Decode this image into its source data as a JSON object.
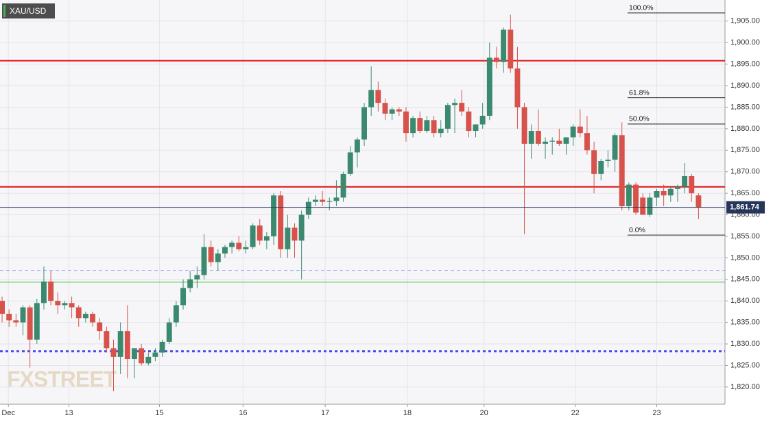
{
  "chart_data": {
    "type": "candlestick",
    "title": "XAU/USD",
    "watermark": "FXSTREET",
    "up_color": "#3b8a70",
    "down_color": "#d6524a",
    "ohlc": [
      [
        1840,
        1841,
        1835,
        1837
      ],
      [
        1837,
        1838,
        1834,
        1835.5
      ],
      [
        1835.5,
        1837,
        1834,
        1835
      ],
      [
        1835,
        1839,
        1832,
        1838.5
      ],
      [
        1838.5,
        1839,
        1824.5,
        1831
      ],
      [
        1831,
        1840.5,
        1830,
        1839.5
      ],
      [
        1839.5,
        1848,
        1838,
        1844.5
      ],
      [
        1844.5,
        1847,
        1839,
        1840
      ],
      [
        1840,
        1842,
        1837,
        1839
      ],
      [
        1839,
        1840,
        1838,
        1839.5
      ],
      [
        1839.5,
        1841,
        1836,
        1838.5
      ],
      [
        1838.5,
        1839,
        1834,
        1836
      ],
      [
        1836,
        1837.5,
        1835,
        1837
      ],
      [
        1837,
        1837.5,
        1834,
        1835
      ],
      [
        1835,
        1836,
        1831,
        1833
      ],
      [
        1833,
        1834,
        1828,
        1829
      ],
      [
        1829,
        1831,
        1819,
        1827
      ],
      [
        1827,
        1835,
        1823,
        1833
      ],
      [
        1833,
        1839,
        1822,
        1826.5
      ],
      [
        1826.5,
        1829,
        1822,
        1829
      ],
      [
        1829,
        1830,
        1825,
        1825.5
      ],
      [
        1825.5,
        1828,
        1825,
        1827
      ],
      [
        1827,
        1829,
        1826,
        1828
      ],
      [
        1828,
        1831,
        1827,
        1830.5
      ],
      [
        1830.5,
        1836,
        1830,
        1835
      ],
      [
        1835,
        1840,
        1834,
        1839
      ],
      [
        1839,
        1845,
        1838,
        1843
      ],
      [
        1843,
        1847,
        1842,
        1845
      ],
      [
        1845,
        1848,
        1843,
        1846
      ],
      [
        1846,
        1855.5,
        1845,
        1852.5
      ],
      [
        1852.5,
        1854,
        1848,
        1849
      ],
      [
        1849,
        1852,
        1847,
        1851
      ],
      [
        1851,
        1853,
        1850,
        1852.5
      ],
      [
        1852.5,
        1854,
        1851,
        1853.5
      ],
      [
        1853.5,
        1855,
        1851.5,
        1852
      ],
      [
        1852,
        1854,
        1851,
        1852.5
      ],
      [
        1852.5,
        1858,
        1852,
        1857.5
      ],
      [
        1857.5,
        1859,
        1853,
        1854
      ],
      [
        1854,
        1856,
        1852,
        1855
      ],
      [
        1855,
        1865,
        1853,
        1864.5
      ],
      [
        1864.5,
        1865.5,
        1850,
        1852
      ],
      [
        1852,
        1860,
        1850,
        1857
      ],
      [
        1857,
        1858,
        1850,
        1854
      ],
      [
        1854,
        1861,
        1845,
        1860
      ],
      [
        1860,
        1864,
        1859,
        1863
      ],
      [
        1863,
        1864.5,
        1862,
        1863.5
      ],
      [
        1863.5,
        1865.5,
        1862,
        1863
      ],
      [
        1863,
        1864,
        1861,
        1863.2
      ],
      [
        1863.2,
        1868,
        1862,
        1864
      ],
      [
        1864,
        1870,
        1863,
        1869.5
      ],
      [
        1869.5,
        1876,
        1869,
        1874.5
      ],
      [
        1874.5,
        1878,
        1871,
        1877.5
      ],
      [
        1877.5,
        1886,
        1876,
        1885
      ],
      [
        1885,
        1894.5,
        1883,
        1889
      ],
      [
        1889,
        1891,
        1884,
        1886
      ],
      [
        1886,
        1887,
        1882,
        1883.5
      ],
      [
        1883.5,
        1885,
        1882,
        1884.5
      ],
      [
        1884.5,
        1885,
        1883,
        1884
      ],
      [
        1884,
        1885,
        1877,
        1879
      ],
      [
        1879,
        1883,
        1878,
        1882.5
      ],
      [
        1882.5,
        1884,
        1879,
        1879.5
      ],
      [
        1879.5,
        1883,
        1879,
        1882
      ],
      [
        1882,
        1883,
        1878,
        1879
      ],
      [
        1879,
        1882,
        1878,
        1880
      ],
      [
        1880,
        1886,
        1879,
        1885.5
      ],
      [
        1885.5,
        1887,
        1879,
        1886
      ],
      [
        1886,
        1889,
        1883,
        1884
      ],
      [
        1884,
        1885,
        1878,
        1879.5
      ],
      [
        1879.5,
        1881,
        1878,
        1881
      ],
      [
        1881,
        1886,
        1880,
        1883
      ],
      [
        1883,
        1900,
        1882,
        1896.5
      ],
      [
        1896.5,
        1899,
        1894,
        1895.5
      ],
      [
        1895.5,
        1903.5,
        1893,
        1903
      ],
      [
        1903,
        1906.5,
        1893,
        1894
      ],
      [
        1894,
        1899,
        1880,
        1885
      ],
      [
        1885,
        1886,
        1855.5,
        1876.5
      ],
      [
        1876.5,
        1881,
        1873,
        1879.5
      ],
      [
        1879.5,
        1884.5,
        1876,
        1876.5
      ],
      [
        1876.5,
        1878,
        1873,
        1877
      ],
      [
        1877,
        1878,
        1874,
        1877.2
      ],
      [
        1877.2,
        1880,
        1876,
        1876.5
      ],
      [
        1876.5,
        1878,
        1874,
        1878
      ],
      [
        1878,
        1881,
        1876,
        1880.5
      ],
      [
        1880.5,
        1884.5,
        1878,
        1879
      ],
      [
        1879,
        1883,
        1874,
        1875
      ],
      [
        1875,
        1877,
        1865,
        1869.5
      ],
      [
        1869.5,
        1873,
        1868,
        1872.5
      ],
      [
        1872.5,
        1875,
        1871,
        1872.8
      ],
      [
        1872.8,
        1879,
        1870,
        1878.5
      ],
      [
        1878.5,
        1881.5,
        1861,
        1862
      ],
      [
        1862,
        1867.5,
        1861,
        1867
      ],
      [
        1867,
        1867.5,
        1860,
        1860.5
      ],
      [
        1864,
        1865,
        1860,
        1860
      ],
      [
        1860,
        1865,
        1859.5,
        1864
      ],
      [
        1864,
        1866,
        1862,
        1865.5
      ],
      [
        1865.5,
        1867,
        1862,
        1864.5
      ],
      [
        1864.5,
        1866.5,
        1863,
        1866
      ],
      [
        1866,
        1867,
        1863,
        1866.5
      ],
      [
        1866.5,
        1872,
        1865,
        1869
      ],
      [
        1869,
        1869.5,
        1863,
        1865
      ],
      [
        1864.5,
        1865,
        1859,
        1861.74
      ]
    ],
    "xlim": [
      -0.3,
      103.8
    ],
    "ylim": [
      1816,
      1909.9
    ],
    "xticks": [
      {
        "value": 0.9,
        "label": "Dec"
      },
      {
        "value": 9.6,
        "label": "13"
      },
      {
        "value": 22.6,
        "label": "15"
      },
      {
        "value": 34.6,
        "label": "16"
      },
      {
        "value": 46.4,
        "label": "17"
      },
      {
        "value": 58.2,
        "label": "18"
      },
      {
        "value": 69.2,
        "label": "20"
      },
      {
        "value": 82.3,
        "label": "22"
      },
      {
        "value": 94,
        "label": "23"
      }
    ],
    "yticks": [
      {
        "value": 1820,
        "label": "1,820.00"
      },
      {
        "value": 1825,
        "label": "1,825.00"
      },
      {
        "value": 1830,
        "label": "1,830.00"
      },
      {
        "value": 1835,
        "label": "1,835.00"
      },
      {
        "value": 1840,
        "label": "1,840.00"
      },
      {
        "value": 1845,
        "label": "1,845.00"
      },
      {
        "value": 1850,
        "label": "1,850.00"
      },
      {
        "value": 1855,
        "label": "1,855.00"
      },
      {
        "value": 1860,
        "label": "1,860.00"
      },
      {
        "value": 1865,
        "label": "1,865.00"
      },
      {
        "value": 1870,
        "label": "1,870.00"
      },
      {
        "value": 1875,
        "label": "1,875.00"
      },
      {
        "value": 1880,
        "label": "1,880.00"
      },
      {
        "value": 1885,
        "label": "1,885.00"
      },
      {
        "value": 1890,
        "label": "1,890.00"
      },
      {
        "value": 1895,
        "label": "1,895.00"
      },
      {
        "value": 1900,
        "label": "1,900.00"
      },
      {
        "value": 1905,
        "label": "1,905.00"
      }
    ],
    "grid": true,
    "hlines": [
      {
        "value": 1895.8,
        "color": "#e01010",
        "style": "solid",
        "width": 2
      },
      {
        "value": 1866.5,
        "color": "#e01010",
        "style": "solid",
        "width": 2
      },
      {
        "value": 1847.1,
        "color": "#9a9af0",
        "style": "dashed",
        "width": 1
      },
      {
        "value": 1844.35,
        "color": "#4cc04c",
        "style": "solid",
        "width": 1
      },
      {
        "value": 1828.3,
        "color": "#4a4ae8",
        "style": "dotted",
        "width": 3
      }
    ],
    "fib": [
      {
        "label": "100.0%",
        "value": 1906.9
      },
      {
        "label": "61.8%",
        "value": 1887.2
      },
      {
        "label": "50.0%",
        "value": 1881.1
      },
      {
        "label": "0.0%",
        "value": 1855.3
      }
    ],
    "last_price": {
      "value": 1861.74,
      "label": "1,861.74",
      "color": "#26355a"
    }
  }
}
